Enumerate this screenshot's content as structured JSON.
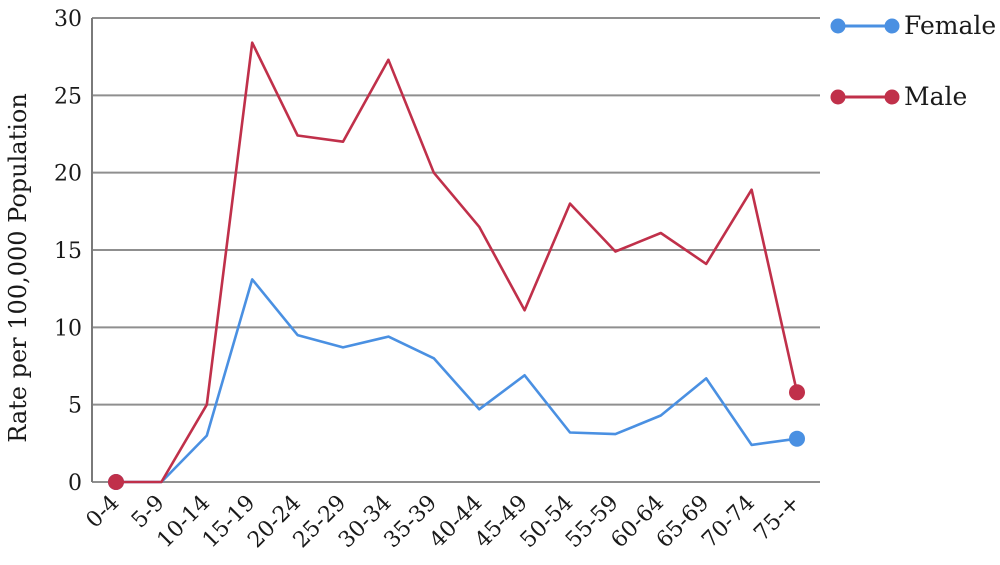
{
  "chart_data": {
    "type": "line",
    "title": "",
    "xlabel": "",
    "ylabel": "Rate per 100,000 Population",
    "categories": [
      "0-4",
      "5-9",
      "10-14",
      "15-19",
      "20-24",
      "25-29",
      "30-34",
      "35-39",
      "40-44",
      "45-49",
      "50-54",
      "55-59",
      "60-64",
      "65-69",
      "70-74",
      "75-+"
    ],
    "ylim": [
      0,
      30
    ],
    "yticks": [
      0,
      5,
      10,
      15,
      20,
      25,
      30
    ],
    "grid": true,
    "legend_position": "right",
    "series": [
      {
        "name": "Female",
        "color": "#4a90e2",
        "values": [
          0,
          0,
          3.0,
          13.1,
          9.5,
          8.7,
          9.4,
          8.0,
          4.7,
          6.9,
          3.2,
          3.1,
          4.3,
          6.7,
          2.4,
          2.8
        ]
      },
      {
        "name": "Male",
        "color": "#c0304a",
        "values": [
          0,
          0,
          5.0,
          28.4,
          22.4,
          22.0,
          27.3,
          20.0,
          16.5,
          11.1,
          18.0,
          14.9,
          16.1,
          14.1,
          18.9,
          5.8
        ]
      }
    ]
  }
}
